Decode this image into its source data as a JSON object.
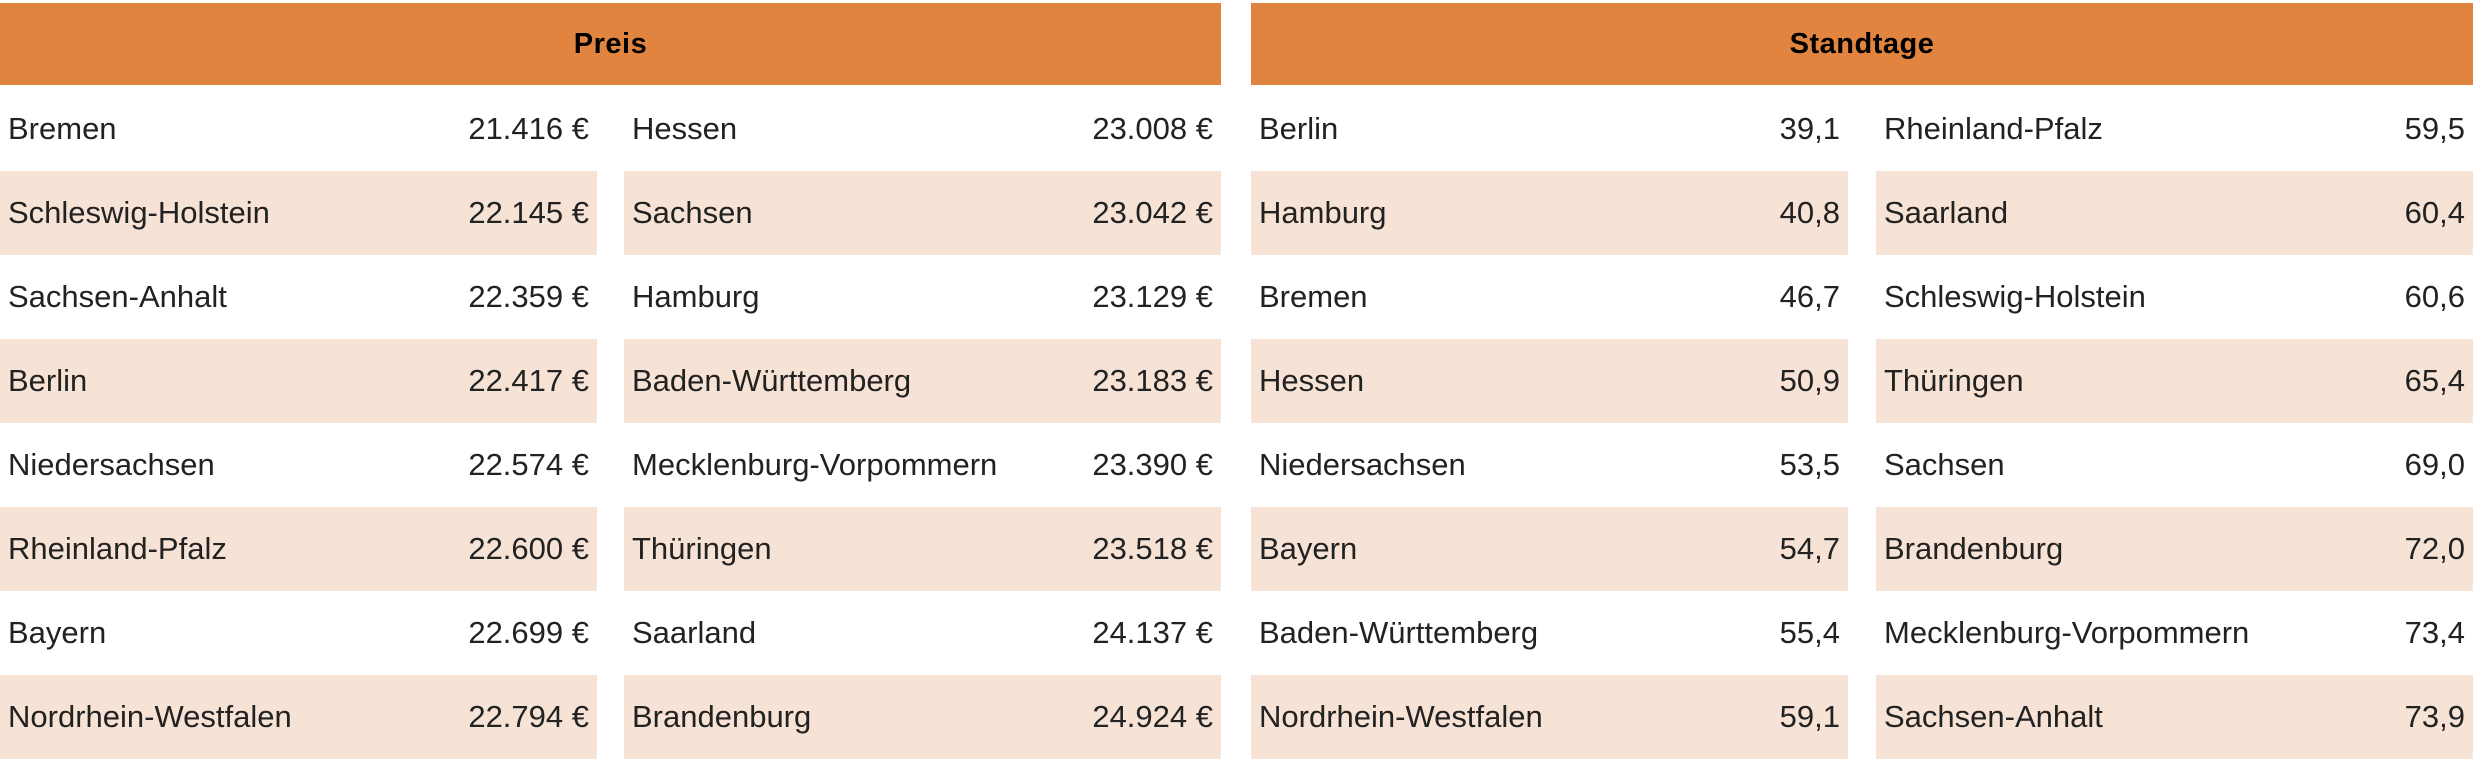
{
  "tables": [
    {
      "title": "Preis",
      "columns": [
        [
          [
            "Bremen",
            "21.416 €"
          ],
          [
            "Schleswig-Holstein",
            "22.145 €"
          ],
          [
            "Sachsen-Anhalt",
            "22.359 €"
          ],
          [
            "Berlin",
            "22.417 €"
          ],
          [
            "Niedersachsen",
            "22.574 €"
          ],
          [
            "Rheinland-Pfalz",
            "22.600 €"
          ],
          [
            "Bayern",
            "22.699 €"
          ],
          [
            "Nordrhein-Westfalen",
            "22.794 €"
          ]
        ],
        [
          [
            "Hessen",
            "23.008 €"
          ],
          [
            "Sachsen",
            "23.042 €"
          ],
          [
            "Hamburg",
            "23.129 €"
          ],
          [
            "Baden-Württemberg",
            "23.183 €"
          ],
          [
            "Mecklenburg-Vorpommern",
            "23.390 €"
          ],
          [
            "Thüringen",
            "23.518 €"
          ],
          [
            "Saarland",
            "24.137 €"
          ],
          [
            "Brandenburg",
            "24.924 €"
          ]
        ]
      ]
    },
    {
      "title": "Standtage",
      "columns": [
        [
          [
            "Berlin",
            "39,1"
          ],
          [
            "Hamburg",
            "40,8"
          ],
          [
            "Bremen",
            "46,7"
          ],
          [
            "Hessen",
            "50,9"
          ],
          [
            "Niedersachsen",
            "53,5"
          ],
          [
            "Bayern",
            "54,7"
          ],
          [
            "Baden-Württemberg",
            "55,4"
          ],
          [
            "Nordrhein-Westfalen",
            "59,1"
          ]
        ],
        [
          [
            "Rheinland-Pfalz",
            "59,5"
          ],
          [
            "Saarland",
            "60,4"
          ],
          [
            "Schleswig-Holstein",
            "60,6"
          ],
          [
            "Thüringen",
            "65,4"
          ],
          [
            "Sachsen",
            "69,0"
          ],
          [
            "Brandenburg",
            "72,0"
          ],
          [
            "Mecklenburg-Vorpommern",
            "73,4"
          ],
          [
            "Sachsen-Anhalt",
            "73,9"
          ]
        ]
      ]
    }
  ]
}
